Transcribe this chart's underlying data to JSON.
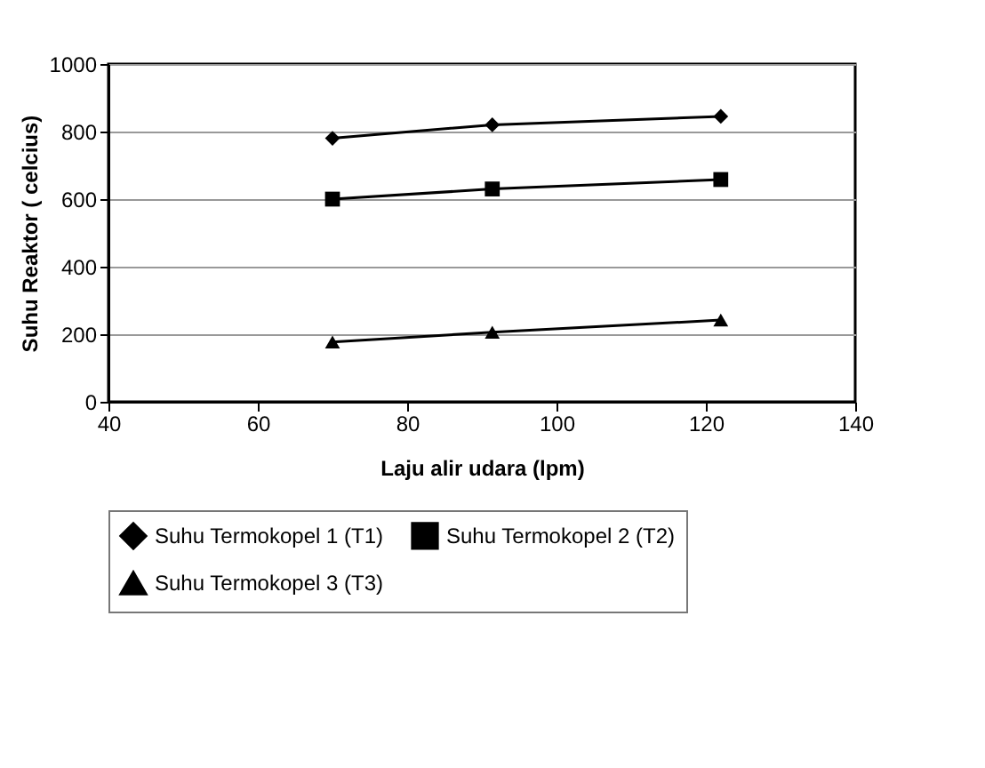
{
  "chart_data": {
    "type": "line",
    "xlabel": "Laju alir udara (lpm)",
    "ylabel": "Suhu Reaktor ( celcius)",
    "xlim": [
      40,
      140
    ],
    "xticks": [
      40,
      60,
      80,
      100,
      120,
      140
    ],
    "ylim": [
      0,
      1000
    ],
    "yticks": [
      0,
      200,
      400,
      600,
      800,
      1000
    ],
    "grid": "y",
    "legend": "bottom",
    "line_style": "solid",
    "series": [
      {
        "name": "Suhu Termokopel 1 (T1)",
        "color": "#000000",
        "marker": "diamond",
        "x": [
          70,
          91.4,
          122
        ],
        "values": [
          780,
          820,
          845
        ]
      },
      {
        "name": "Suhu Termokopel 2 (T2)",
        "color": "#000000",
        "marker": "square",
        "x": [
          70,
          91.4,
          122
        ],
        "values": [
          600,
          630,
          658
        ]
      },
      {
        "name": "Suhu Termokopel 3 (T3)",
        "color": "#000000",
        "marker": "triangle",
        "x": [
          70,
          91.4,
          122
        ],
        "values": [
          177,
          206,
          242
        ]
      }
    ]
  }
}
